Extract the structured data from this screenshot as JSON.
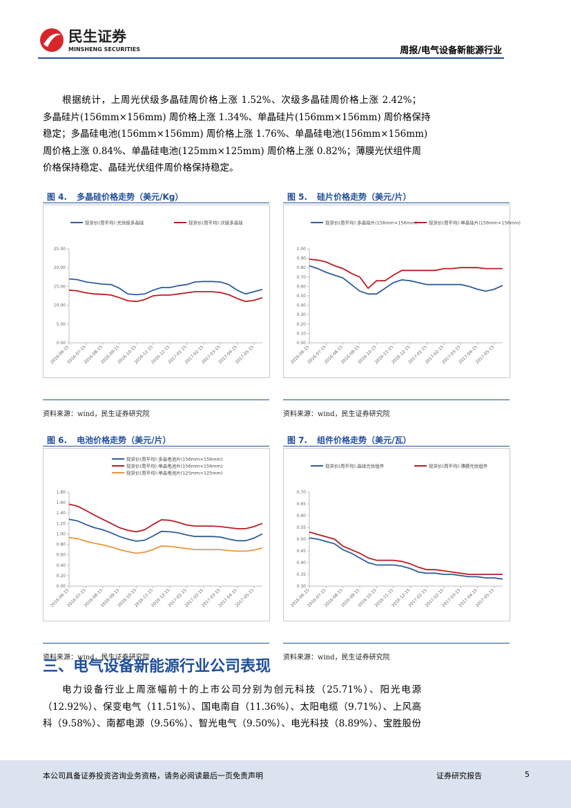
{
  "header": {
    "brand": "民生证券",
    "brand_en": "MINSHENG SECURITIES",
    "section": "周报/电气设备新能源行业"
  },
  "paragraphs": [
    [
      "根据统计，上周光伏级多晶硅周价格上涨 1.52%、次级多晶硅周价格上涨 2.42%；",
      "多晶硅片(156mm×156mm) 周价格上涨 1.34%、单晶硅片(156mm×156mm) 周价格保持",
      "稳定；多晶硅电池(156mm×156mm) 周价格上涨 1.76%、单晶硅电池(156mm×156mm)",
      "周价格上涨 0.84%、单晶硅电池(125mm×125mm) 周价格上涨 0.82%；薄膜光伏组件周",
      "价格保持稳定、晶硅光伏组件周价格保持稳定。"
    ],
    [
      "电力设备行业上周涨幅前十的上市公司分别为创元科技（25.71%）、阳光电源",
      "（12.92%）、保变电气（11.51%）、国电南自（11.36%）、太阳电缆（9.71%）、上风高",
      "科（9.58%）、南都电源（9.56%）、智光电气（9.50%）、电光科技（8.89%）、宝胜股份"
    ]
  ],
  "section_heading": "三、电气设备新能源行业公司表现",
  "figures": [
    {
      "label": "图 4.",
      "title": "多晶硅价格走势（美元/Kg）",
      "source": "资料来源：wind，民生证券研究院",
      "chart": {
        "type": "line",
        "categories": [
          "2016-06-15",
          null,
          "2016-07-15",
          null,
          "2016-08-15",
          null,
          "2016-09-15",
          null,
          "2016-10-15",
          null,
          "2016-11-15",
          null,
          "2016-12-15",
          null,
          "2017-01-15",
          null,
          "2017-02-15",
          null,
          "2017-03-15",
          null,
          "2017-04-15",
          null,
          "2017-05-15",
          null
        ],
        "ylim": [
          0,
          25
        ],
        "yticks": [
          {
            "value": 0,
            "label": "0.00"
          },
          {
            "value": 5,
            "label": "5.00"
          },
          {
            "value": 10,
            "label": "10.00"
          },
          {
            "value": 15,
            "label": "15.00"
          },
          {
            "value": 20,
            "label": "20.00"
          },
          {
            "value": 25,
            "label": "25.00"
          }
        ],
        "series": [
          {
            "name": "现货价(周平均):光伏级多晶硅",
            "color": "#2e5c99",
            "values": [
              17,
              16.8,
              16.2,
              15.9,
              15.6,
              15.5,
              14.5,
              13,
              12.8,
              13,
              14,
              14.7,
              14.7,
              15.2,
              15.5,
              16.2,
              16.3,
              16.3,
              16.2,
              15.5,
              14,
              13,
              13.6,
              14.2
            ]
          },
          {
            "name": "现货价(周平均):次级多晶硅",
            "color": "#b81c22",
            "values": [
              14,
              13.8,
              13.3,
              13,
              12.9,
              12.7,
              12,
              11.2,
              11,
              11.5,
              12.5,
              12.7,
              12.7,
              13,
              13.3,
              13.6,
              13.6,
              13.6,
              13.4,
              12.8,
              11.8,
              11,
              11.3,
              12
            ]
          }
        ]
      }
    },
    {
      "label": "图 5.",
      "title": "硅片价格走势（美元/片）",
      "source": "资料来源：wind，民生证券研究院",
      "chart": {
        "type": "line",
        "categories": [
          "2016-06-15",
          null,
          "2016-07-15",
          null,
          "2016-08-15",
          null,
          "2016-09-15",
          null,
          "2016-10-15",
          null,
          "2016-11-15",
          null,
          "2016-12-15",
          null,
          "2017-01-15",
          null,
          "2017-02-15",
          null,
          "2017-03-15",
          null,
          "2017-04-15",
          null,
          "2017-05-15",
          null
        ],
        "ylim": [
          0,
          1
        ],
        "yticks": [
          {
            "value": 0,
            "label": "0.00"
          },
          {
            "value": 0.1,
            "label": "0.10"
          },
          {
            "value": 0.2,
            "label": "0.20"
          },
          {
            "value": 0.3,
            "label": "0.30"
          },
          {
            "value": 0.4,
            "label": "0.40"
          },
          {
            "value": 0.5,
            "label": "0.50"
          },
          {
            "value": 0.6,
            "label": "0.60"
          },
          {
            "value": 0.7,
            "label": "0.70"
          },
          {
            "value": 0.8,
            "label": "0.80"
          },
          {
            "value": 0.9,
            "label": "0.90"
          },
          {
            "value": 1,
            "label": "1.00"
          }
        ],
        "series": [
          {
            "name": "现货价(周平均):多晶硅片(156mm×156mm)",
            "color": "#2e5c99",
            "values": [
              0.82,
              0.79,
              0.75,
              0.72,
              0.69,
              0.62,
              0.55,
              0.52,
              0.52,
              0.58,
              0.64,
              0.67,
              0.66,
              0.64,
              0.62,
              0.62,
              0.62,
              0.62,
              0.62,
              0.6,
              0.57,
              0.55,
              0.57,
              0.61
            ]
          },
          {
            "name": "现货价(周平均):单晶硅片(156mm×156mm)",
            "color": "#b81c22",
            "values": [
              0.89,
              0.88,
              0.86,
              0.82,
              0.79,
              0.74,
              0.7,
              0.58,
              0.66,
              0.66,
              0.72,
              0.77,
              0.77,
              0.77,
              0.77,
              0.77,
              0.79,
              0.79,
              0.8,
              0.8,
              0.8,
              0.79,
              0.79,
              0.79
            ]
          }
        ]
      }
    },
    {
      "label": "图 6.",
      "title": "电池价格走势（美元/片）",
      "source": "资料来源：wind，民生证券研究院",
      "chart": {
        "type": "line",
        "categories": [
          "2016-06-15",
          null,
          "2016-07-15",
          null,
          "2016-08-15",
          null,
          "2016-09-15",
          null,
          "2016-10-15",
          null,
          "2016-11-15",
          null,
          "2016-12-15",
          null,
          "2017-01-15",
          null,
          "2017-02-15",
          null,
          "2017-03-15",
          null,
          "2017-04-15",
          null,
          "2017-05-15",
          null
        ],
        "ylim": [
          0,
          1.8
        ],
        "yticks": [
          {
            "value": 0,
            "label": "0.00"
          },
          {
            "value": 0.2,
            "label": "0.20"
          },
          {
            "value": 0.4,
            "label": "0.40"
          },
          {
            "value": 0.6,
            "label": "0.60"
          },
          {
            "value": 0.8,
            "label": "0.80"
          },
          {
            "value": 1,
            "label": "1.00"
          },
          {
            "value": 1.2,
            "label": "1.20"
          },
          {
            "value": 1.4,
            "label": "1.40"
          },
          {
            "value": 1.6,
            "label": "1.60"
          },
          {
            "value": 1.8,
            "label": "1.80"
          }
        ],
        "series": [
          {
            "name": "现货价(周平均):多晶电池片(156mm×156mm)",
            "color": "#2e5c99",
            "values": [
              1.28,
              1.25,
              1.18,
              1.12,
              1.08,
              1.02,
              0.95,
              0.9,
              0.86,
              0.88,
              0.96,
              1.05,
              1.04,
              1.02,
              0.98,
              0.95,
              0.95,
              0.95,
              0.94,
              0.9,
              0.87,
              0.87,
              0.92,
              1
            ]
          },
          {
            "name": "现货价(周平均):单晶电池片(156mm×156mm)",
            "color": "#b81c22",
            "values": [
              1.57,
              1.53,
              1.45,
              1.36,
              1.28,
              1.2,
              1.12,
              1.07,
              1.04,
              1.08,
              1.18,
              1.27,
              1.26,
              1.22,
              1.17,
              1.15,
              1.15,
              1.15,
              1.14,
              1.12,
              1.1,
              1.1,
              1.14,
              1.2
            ]
          },
          {
            "name": "现货价(周平均):单晶电池片(125mm×125mm)",
            "color": "#f0923a",
            "values": [
              0.93,
              0.91,
              0.86,
              0.82,
              0.79,
              0.75,
              0.7,
              0.66,
              0.63,
              0.65,
              0.7,
              0.77,
              0.76,
              0.74,
              0.72,
              0.7,
              0.7,
              0.7,
              0.7,
              0.68,
              0.67,
              0.67,
              0.69,
              0.73
            ]
          }
        ]
      }
    },
    {
      "label": "图 7.",
      "title": "组件价格走势（美元/瓦）",
      "source": "资料来源：wind，民生证券研究院",
      "chart": {
        "type": "line",
        "categories": [
          "2016-06-15",
          null,
          "2016-07-15",
          null,
          "2016-08-15",
          null,
          "2016-09-15",
          null,
          "2016-10-15",
          null,
          "2016-11-15",
          null,
          "2016-12-15",
          null,
          "2017-01-15",
          null,
          "2017-02-15",
          null,
          "2017-03-15",
          null,
          "2017-04-15",
          null,
          "2017-05-15",
          null
        ],
        "ylim": [
          0.3,
          0.7
        ],
        "yticks": [
          {
            "value": 0.3,
            "label": "0.30"
          },
          {
            "value": 0.35,
            "label": "0.35"
          },
          {
            "value": 0.4,
            "label": "0.40"
          },
          {
            "value": 0.45,
            "label": "0.45"
          },
          {
            "value": 0.5,
            "label": "0.50"
          },
          {
            "value": 0.55,
            "label": "0.55"
          },
          {
            "value": 0.6,
            "label": "0.60"
          },
          {
            "value": 0.65,
            "label": "0.65"
          },
          {
            "value": 0.7,
            "label": "0.70"
          }
        ],
        "series": [
          {
            "name": "现货价(周平均):晶硅光伏组件",
            "color": "#2e5c99",
            "values": [
              0.505,
              0.5,
              0.49,
              0.48,
              0.455,
              0.44,
              0.42,
              0.4,
              0.39,
              0.39,
              0.39,
              0.385,
              0.375,
              0.36,
              0.355,
              0.355,
              0.35,
              0.35,
              0.345,
              0.34,
              0.34,
              0.335,
              0.335,
              0.33
            ]
          },
          {
            "name": "现货价(周平均):薄膜光伏组件",
            "color": "#b81c22",
            "values": [
              0.53,
              0.52,
              0.51,
              0.5,
              0.47,
              0.455,
              0.44,
              0.42,
              0.41,
              0.41,
              0.41,
              0.405,
              0.395,
              0.38,
              0.37,
              0.37,
              0.365,
              0.36,
              0.355,
              0.35,
              0.35,
              0.35,
              0.35,
              0.35
            ]
          }
        ]
      }
    }
  ],
  "footer": {
    "disclaimer": "本公司具备证券投资咨询业务资格，请务必阅读最后一页免责声明",
    "doc_type": "证券研究报告",
    "page": "5"
  }
}
